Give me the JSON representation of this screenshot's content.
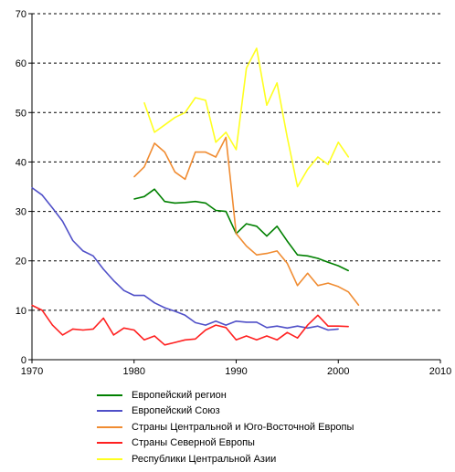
{
  "chart_data": {
    "type": "line",
    "title": "",
    "xlabel": "",
    "ylabel": "",
    "xlim": [
      1970,
      2010
    ],
    "ylim": [
      0,
      70
    ],
    "x_ticks": [
      "1970",
      "1980",
      "1990",
      "2000",
      "2010"
    ],
    "y_ticks": [
      "0",
      "10",
      "20",
      "30",
      "40",
      "50",
      "60",
      "70"
    ],
    "grid": "horizontal-dashed",
    "legend_position": "bottom",
    "series": [
      {
        "name": "Европейский регион",
        "color": "#008000",
        "points": [
          [
            1980,
            32.5
          ],
          [
            1981,
            33
          ],
          [
            1982,
            34.5
          ],
          [
            1983,
            32
          ],
          [
            1984,
            31.7
          ],
          [
            1985,
            31.8
          ],
          [
            1986,
            32
          ],
          [
            1987,
            31.7
          ],
          [
            1988,
            30.2
          ],
          [
            1989,
            30
          ],
          [
            1990,
            25.5
          ],
          [
            1991,
            27.5
          ],
          [
            1992,
            27
          ],
          [
            1993,
            25
          ],
          [
            1994,
            27
          ],
          [
            1995,
            24
          ],
          [
            1996,
            21.2
          ],
          [
            1997,
            21
          ],
          [
            1998,
            20.5
          ],
          [
            1999,
            19.7
          ],
          [
            2000,
            19
          ],
          [
            2001,
            18
          ]
        ]
      },
      {
        "name": "Европейский Союз",
        "color": "#5050c8",
        "points": [
          [
            1970,
            34.8
          ],
          [
            1971,
            33.3
          ],
          [
            1972,
            30.7
          ],
          [
            1973,
            28
          ],
          [
            1974,
            24.1
          ],
          [
            1975,
            22
          ],
          [
            1976,
            21
          ],
          [
            1977,
            18.3
          ],
          [
            1978,
            16
          ],
          [
            1979,
            14
          ],
          [
            1980,
            13
          ],
          [
            1981,
            13
          ],
          [
            1982,
            11.5
          ],
          [
            1983,
            10.5
          ],
          [
            1984,
            9.8
          ],
          [
            1985,
            9
          ],
          [
            1986,
            7.5
          ],
          [
            1987,
            7
          ],
          [
            1988,
            7.8
          ],
          [
            1989,
            7
          ],
          [
            1990,
            7.8
          ],
          [
            1991,
            7.6
          ],
          [
            1992,
            7.6
          ],
          [
            1993,
            6.5
          ],
          [
            1994,
            6.8
          ],
          [
            1995,
            6.4
          ],
          [
            1996,
            6.8
          ],
          [
            1997,
            6.4
          ],
          [
            1998,
            6.8
          ],
          [
            1999,
            6
          ],
          [
            2000,
            6.2
          ]
        ]
      },
      {
        "name": "Страны Центральной и Юго-Восточной Европы",
        "color": "#f08c32",
        "points": [
          [
            1980,
            37
          ],
          [
            1981,
            39
          ],
          [
            1982,
            43.8
          ],
          [
            1983,
            42
          ],
          [
            1984,
            38
          ],
          [
            1985,
            36.5
          ],
          [
            1986,
            42
          ],
          [
            1987,
            42
          ],
          [
            1988,
            41
          ],
          [
            1989,
            45
          ],
          [
            1990,
            25.5
          ],
          [
            1991,
            23
          ],
          [
            1992,
            21.2
          ],
          [
            1993,
            21.5
          ],
          [
            1994,
            22
          ],
          [
            1995,
            19.5
          ],
          [
            1996,
            15
          ],
          [
            1997,
            17.5
          ],
          [
            1998,
            15
          ],
          [
            1999,
            15.5
          ],
          [
            2000,
            14.8
          ],
          [
            2001,
            13.7
          ],
          [
            2002,
            11
          ]
        ]
      },
      {
        "name": "Страны Северной Европы",
        "color": "#ff2020",
        "points": [
          [
            1970,
            11
          ],
          [
            1971,
            10
          ],
          [
            1972,
            7
          ],
          [
            1973,
            5
          ],
          [
            1974,
            6.2
          ],
          [
            1975,
            6
          ],
          [
            1976,
            6.2
          ],
          [
            1977,
            8.4
          ],
          [
            1978,
            5
          ],
          [
            1979,
            6.4
          ],
          [
            1980,
            6
          ],
          [
            1981,
            4
          ],
          [
            1982,
            4.8
          ],
          [
            1983,
            3
          ],
          [
            1984,
            3.5
          ],
          [
            1985,
            4
          ],
          [
            1986,
            4.2
          ],
          [
            1987,
            6
          ],
          [
            1988,
            7
          ],
          [
            1989,
            6.5
          ],
          [
            1990,
            4
          ],
          [
            1991,
            4.8
          ],
          [
            1992,
            4
          ],
          [
            1993,
            4.8
          ],
          [
            1994,
            4
          ],
          [
            1995,
            5.5
          ],
          [
            1996,
            4.4
          ],
          [
            1997,
            7
          ],
          [
            1998,
            9
          ],
          [
            1999,
            6.8
          ],
          [
            2000,
            6.8
          ],
          [
            2001,
            6.7
          ]
        ]
      },
      {
        "name": "Республики Центральной Азии",
        "color": "#ffff20",
        "points": [
          [
            1981,
            52
          ],
          [
            1982,
            46
          ],
          [
            1983,
            47.5
          ],
          [
            1984,
            49
          ],
          [
            1985,
            50
          ],
          [
            1986,
            53
          ],
          [
            1987,
            52.5
          ],
          [
            1988,
            44
          ],
          [
            1989,
            46
          ],
          [
            1990,
            42.5
          ],
          [
            1991,
            59
          ],
          [
            1992,
            63
          ],
          [
            1993,
            51.5
          ],
          [
            1994,
            56
          ],
          [
            1995,
            45
          ],
          [
            1996,
            35
          ],
          [
            1997,
            38.5
          ],
          [
            1998,
            41
          ],
          [
            1999,
            39.5
          ],
          [
            2000,
            44
          ],
          [
            2001,
            41
          ]
        ]
      }
    ]
  }
}
